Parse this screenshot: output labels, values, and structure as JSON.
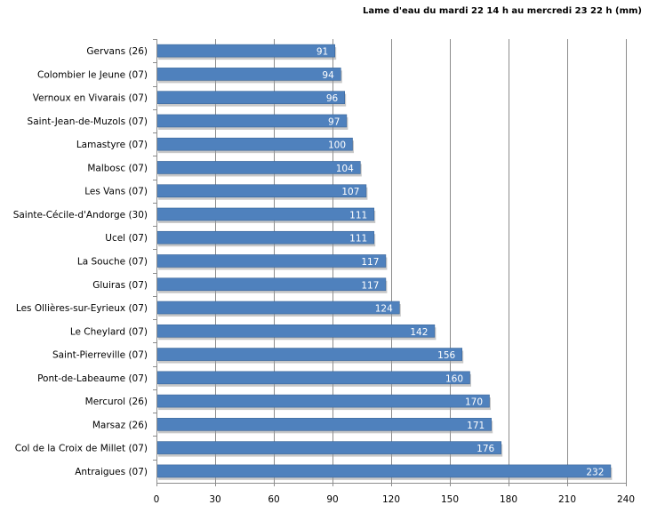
{
  "chart_data": {
    "type": "bar",
    "orientation": "horizontal",
    "title": "Lame d'eau du mardi 22 14 h au mercredi 23 22 h (mm)",
    "categories": [
      "Gervans (26)",
      "Colombier le Jeune (07)",
      "Vernoux en Vivarais  (07)",
      "Saint-Jean-de-Muzols (07)",
      "Lamastyre (07)",
      "Malbosc (07)",
      "Les Vans (07)",
      "Sainte-Cécile-d'Andorge (30)",
      "Ucel (07)",
      "La Souche (07)",
      "Gluiras (07)",
      "Les Ollières-sur-Eyrieux (07)",
      "Le Cheylard (07)",
      "Saint-Pierreville (07)",
      "Pont-de-Labeaume (07)",
      "Mercurol (26)",
      "Marsaz (26)",
      "Col de la Croix de Millet (07)",
      "Antraigues (07)"
    ],
    "values": [
      91,
      94,
      96,
      97,
      100,
      104,
      107,
      111,
      111,
      117,
      117,
      124,
      142,
      156,
      160,
      170,
      171,
      176,
      232
    ],
    "xlim": [
      0,
      240
    ],
    "xticks": [
      0,
      30,
      60,
      90,
      120,
      150,
      180,
      210,
      240
    ],
    "grid": "vertical",
    "legend": "none",
    "colors": {
      "bar": "#4f81bd",
      "bar_edge": "#3a6699",
      "shadow": "#9a9a9a",
      "grid": "#8c8c8c",
      "axis": "#8c8c8c",
      "data_label": "#ffffff"
    }
  }
}
